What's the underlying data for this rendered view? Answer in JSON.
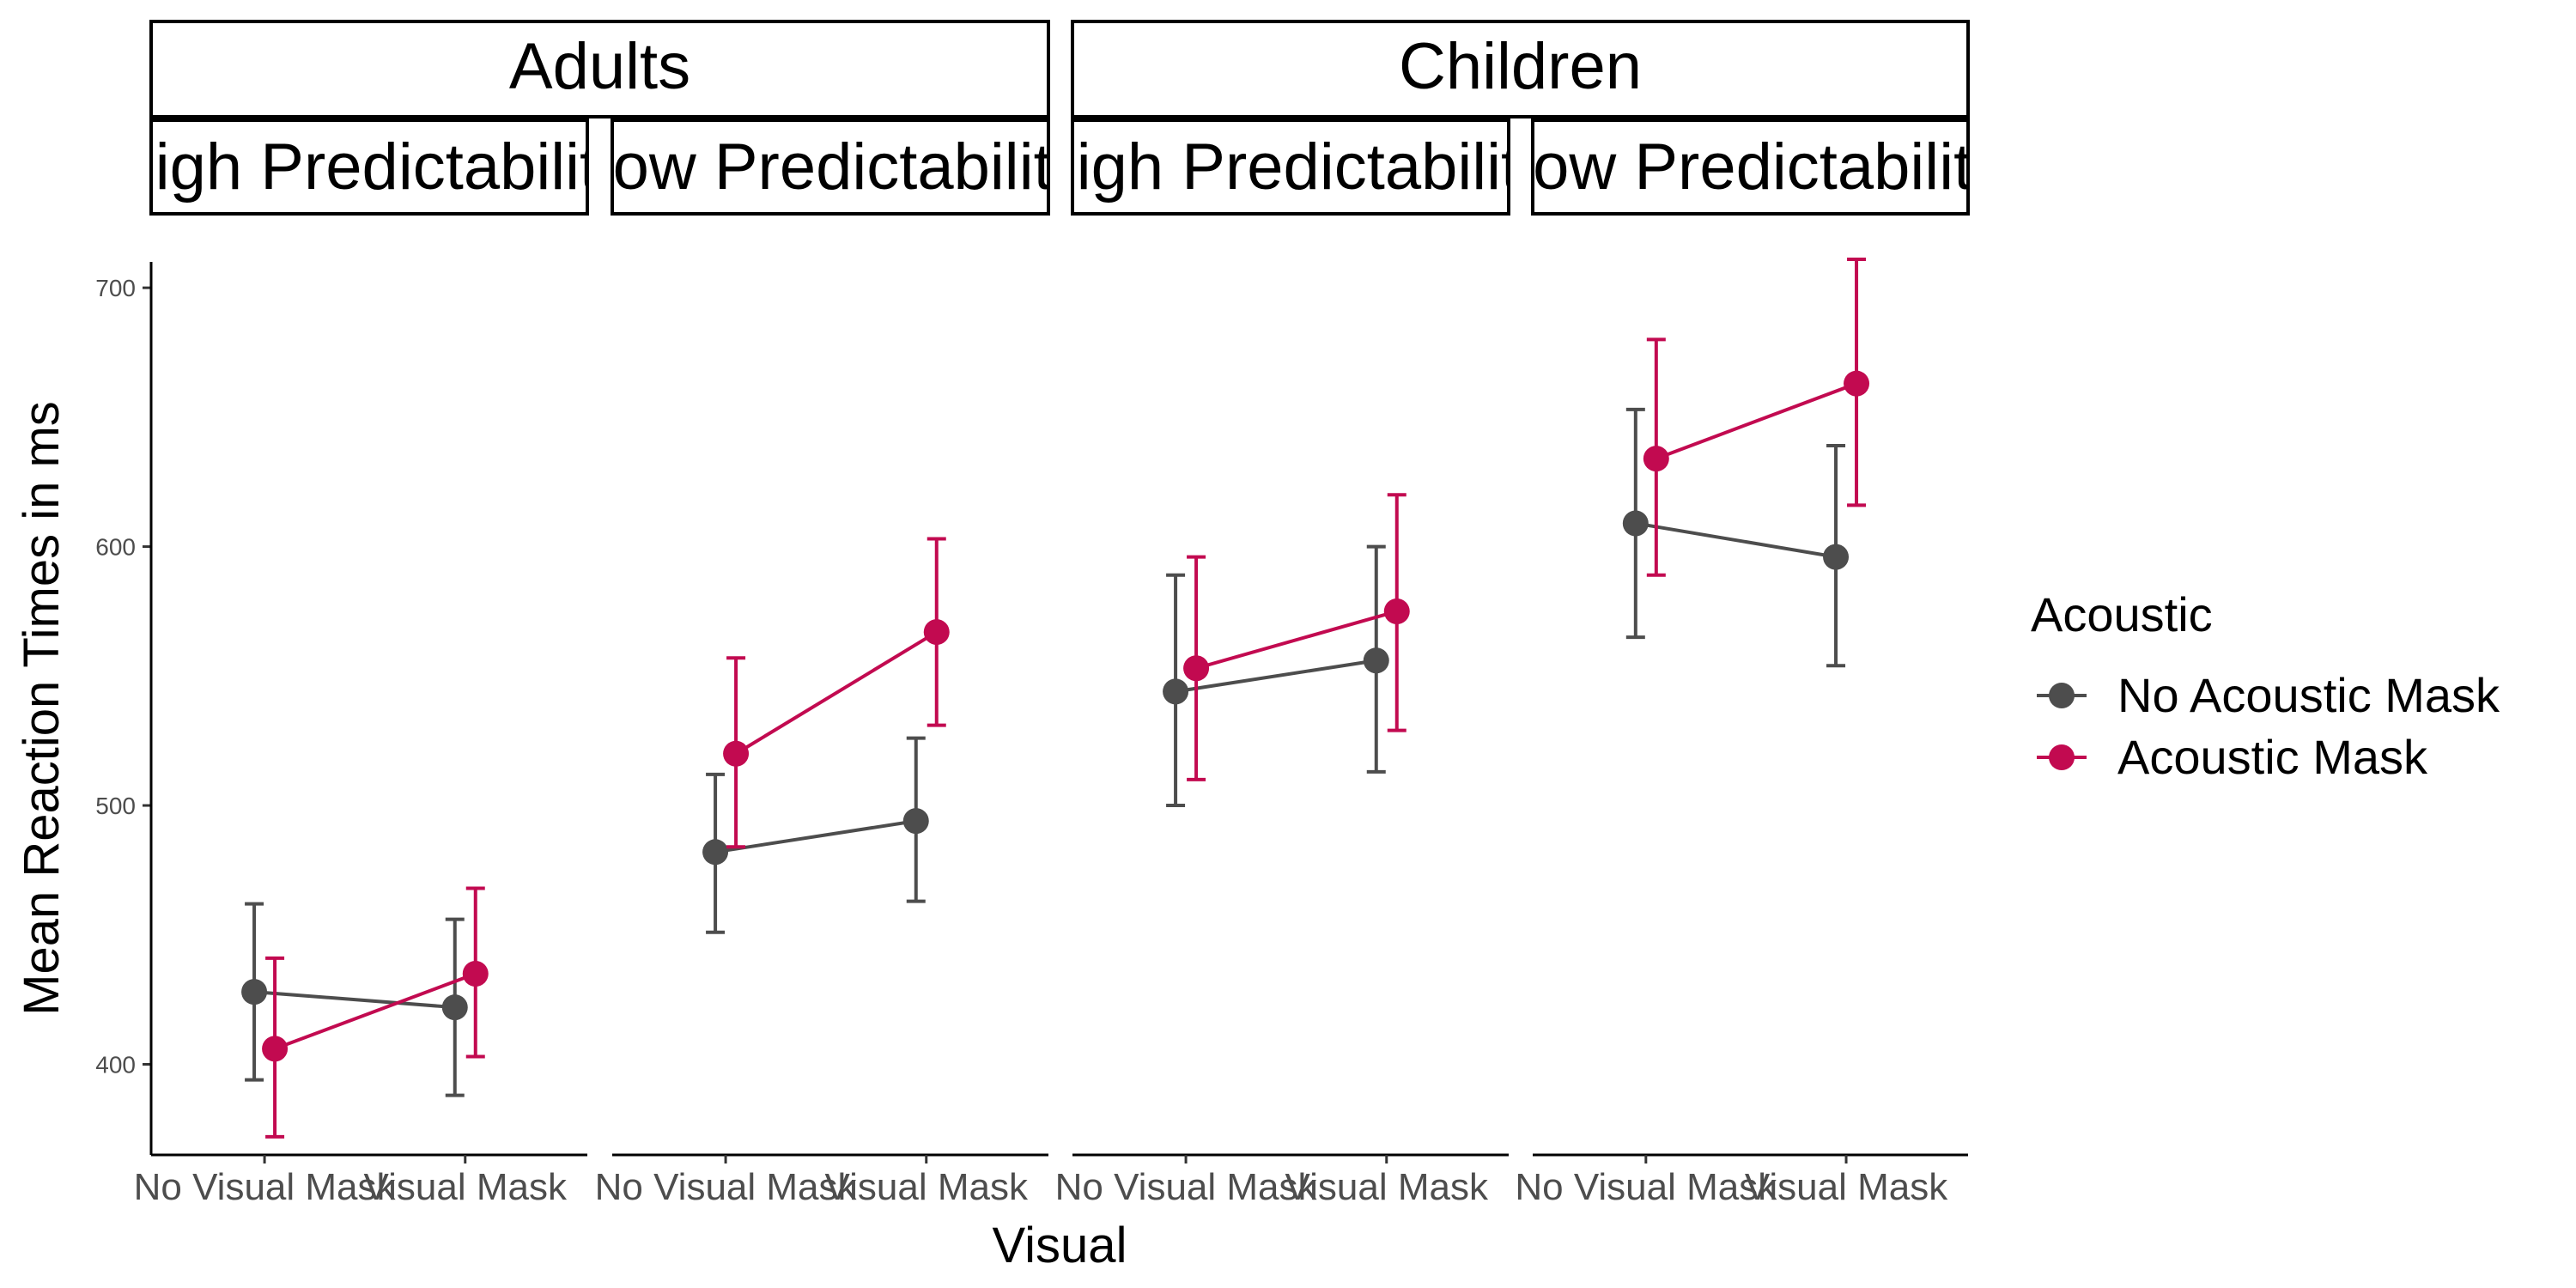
{
  "chart_data": {
    "type": "line",
    "xlabel": "Visual",
    "ylabel": "Mean Reaction Times in ms",
    "ylim": [
      365,
      710
    ],
    "yticks": [
      400,
      500,
      600,
      700
    ],
    "categories": [
      "No Visual Mask",
      "Visual Mask"
    ],
    "legend": {
      "title": "Acoustic",
      "position": "right"
    },
    "series_styles": [
      {
        "name": "No Acoustic Mask",
        "color": "#4d4d4d"
      },
      {
        "name": "Acoustic Mask",
        "color": "#c20a50"
      }
    ],
    "groups": [
      {
        "label": "Adults",
        "panels": [
          {
            "label": "High Predictability",
            "series": [
              {
                "name": "No Acoustic Mask",
                "values": [
                  428,
                  422
                ],
                "lower": [
                  394,
                  388
                ],
                "upper": [
                  462,
                  456
                ]
              },
              {
                "name": "Acoustic Mask",
                "values": [
                  406,
                  435
                ],
                "lower": [
                  372,
                  403
                ],
                "upper": [
                  441,
                  468
                ]
              }
            ]
          },
          {
            "label": "Low Predictability",
            "series": [
              {
                "name": "No Acoustic Mask",
                "values": [
                  482,
                  494
                ],
                "lower": [
                  451,
                  463
                ],
                "upper": [
                  512,
                  526
                ]
              },
              {
                "name": "Acoustic Mask",
                "values": [
                  520,
                  567
                ],
                "lower": [
                  484,
                  531
                ],
                "upper": [
                  557,
                  603
                ]
              }
            ]
          }
        ]
      },
      {
        "label": "Children",
        "panels": [
          {
            "label": "High Predictability",
            "series": [
              {
                "name": "No Acoustic Mask",
                "values": [
                  544,
                  556
                ],
                "lower": [
                  500,
                  513
                ],
                "upper": [
                  589,
                  600
                ]
              },
              {
                "name": "Acoustic Mask",
                "values": [
                  553,
                  575
                ],
                "lower": [
                  510,
                  529
                ],
                "upper": [
                  596,
                  620
                ]
              }
            ]
          },
          {
            "label": "Low Predictability",
            "series": [
              {
                "name": "No Acoustic Mask",
                "values": [
                  609,
                  596
                ],
                "lower": [
                  565,
                  554
                ],
                "upper": [
                  653,
                  639
                ]
              },
              {
                "name": "Acoustic Mask",
                "values": [
                  634,
                  663
                ],
                "lower": [
                  589,
                  616
                ],
                "upper": [
                  680,
                  711
                ]
              }
            ]
          }
        ]
      }
    ]
  }
}
